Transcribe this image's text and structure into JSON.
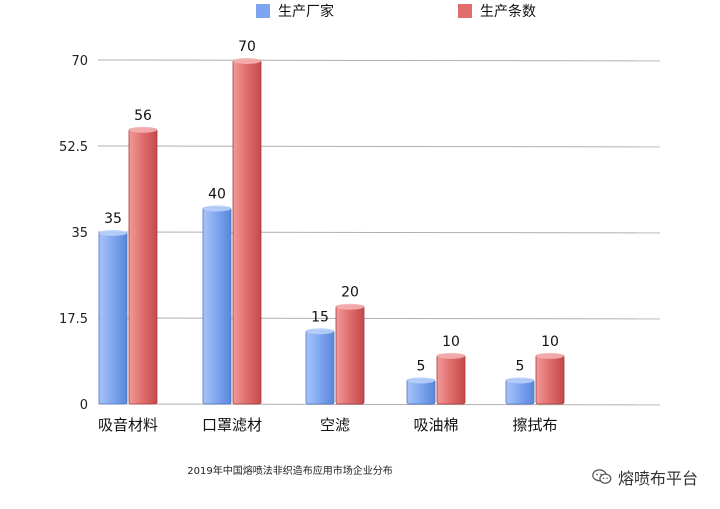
{
  "chart_data": {
    "type": "bar",
    "categories": [
      "吸音材料",
      "口罩滤材",
      "空滤",
      "吸油棉",
      "擦拭布"
    ],
    "series": [
      {
        "name": "生产厂家",
        "values": [
          35,
          40,
          15,
          5,
          5
        ],
        "color": "#7ea6f0"
      },
      {
        "name": "生产条数",
        "values": [
          56,
          70,
          20,
          10,
          10
        ],
        "color": "#e06c6c"
      }
    ],
    "yticks": [
      "0",
      "17.5",
      "35",
      "52.5",
      "70"
    ],
    "ylim": [
      0,
      70
    ],
    "grid": true,
    "legend": "top",
    "caption": "2019年中国熔喷法非织造布应用市场企业分布"
  },
  "watermark": {
    "text": "熔喷布平台",
    "icon": "wechat-icon"
  }
}
